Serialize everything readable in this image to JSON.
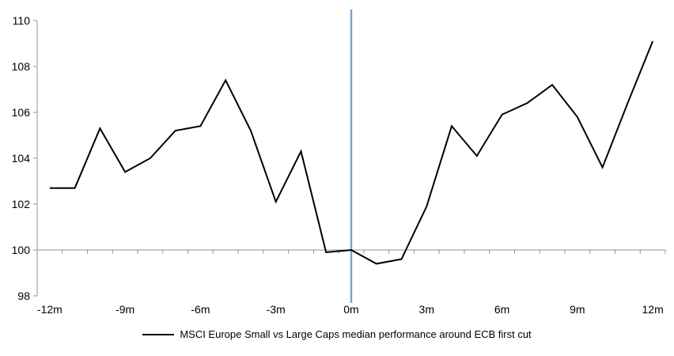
{
  "chart_data": {
    "type": "line",
    "title": "",
    "legend": "MSCI Europe Small vs Large Caps median performance around ECB first cut",
    "categories": [
      "-12m",
      "-11m",
      "-10m",
      "-9m",
      "-8m",
      "-7m",
      "-6m",
      "-5m",
      "-4m",
      "-3m",
      "-2m",
      "-1m",
      "0m",
      "1m",
      "2m",
      "3m",
      "4m",
      "5m",
      "6m",
      "7m",
      "8m",
      "9m",
      "10m",
      "11m",
      "12m"
    ],
    "series": [
      {
        "name": "MSCI Europe Small vs Large Caps median performance around ECB first cut",
        "values": [
          102.7,
          102.7,
          105.3,
          103.4,
          104.0,
          105.2,
          105.4,
          107.4,
          105.2,
          102.1,
          104.3,
          99.9,
          100.0,
          99.4,
          99.6,
          101.9,
          105.4,
          104.1,
          105.9,
          106.4,
          107.2,
          105.8,
          103.6,
          106.4,
          109.1
        ]
      }
    ],
    "xlabel": "",
    "ylabel": "",
    "ylim": [
      98,
      110
    ],
    "y_ticks": [
      98,
      100,
      102,
      104,
      106,
      108,
      110
    ],
    "x_tick_labels": [
      "-12m",
      "-9m",
      "-6m",
      "-3m",
      "0m",
      "3m",
      "6m",
      "9m",
      "12m"
    ],
    "baseline_value": 100,
    "event_line_category": "0m",
    "grid": "single horizontal line at 100 only",
    "legend_position": "bottom-center",
    "colors": {
      "series_line": "#000000",
      "event_line": "#7aa4cd",
      "axis": "#969696",
      "text": "#000000",
      "background": "#ffffff"
    }
  }
}
